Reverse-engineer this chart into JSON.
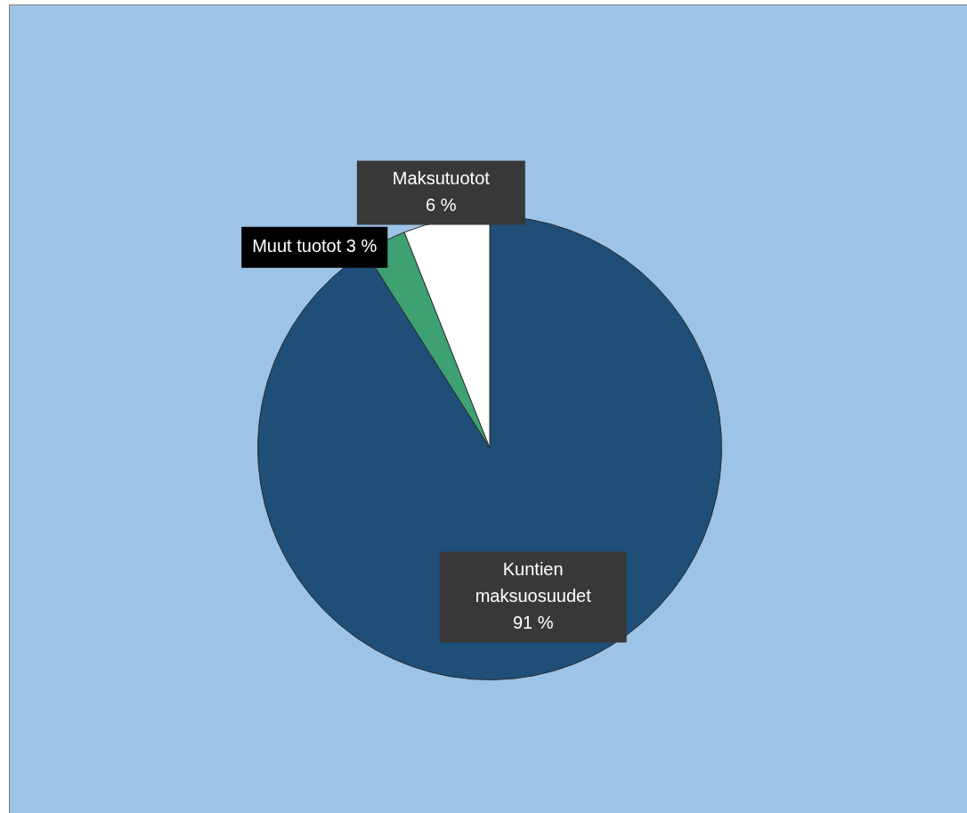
{
  "chart_data": {
    "type": "pie",
    "categories": [
      "Kuntien maksuosuudet",
      "Muut tuotot",
      "Maksutuotot"
    ],
    "values": [
      91,
      3,
      6
    ],
    "colors": [
      "#1f4e79",
      "#3ea172",
      "#ffffff"
    ],
    "value_labels": [
      "91 %",
      "3 %",
      "6 %"
    ],
    "legend": false
  }
}
